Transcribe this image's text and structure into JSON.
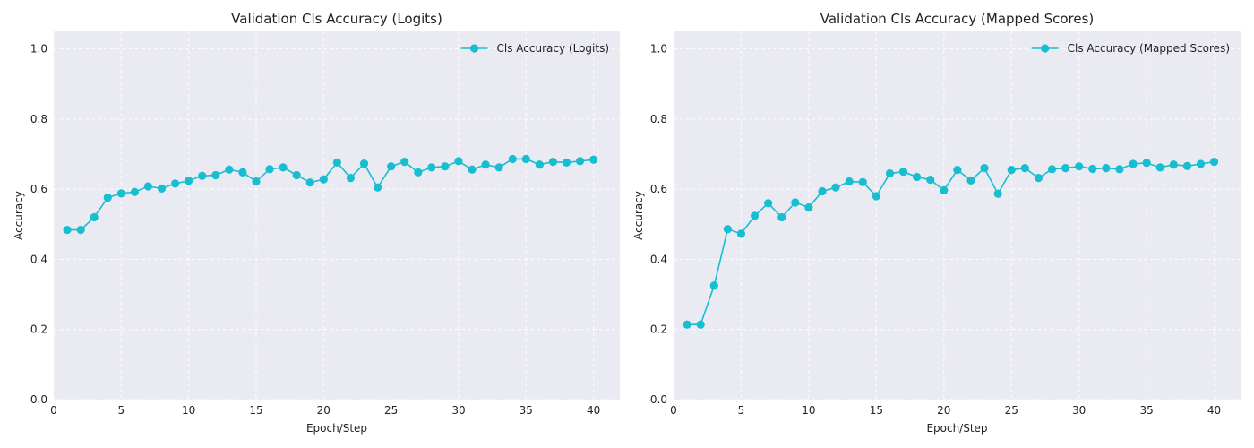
{
  "chart_data": [
    {
      "type": "line",
      "title": "Validation Cls Accuracy (Logits)",
      "xlabel": "Epoch/Step",
      "ylabel": "Accuracy",
      "xlim": [
        0,
        41.95
      ],
      "ylim": [
        0,
        1.05
      ],
      "xticks": [
        0,
        5,
        10,
        15,
        20,
        25,
        30,
        35,
        40
      ],
      "yticks": [
        0.0,
        0.2,
        0.4,
        0.6,
        0.8,
        1.0
      ],
      "xtick_labels": [
        "0",
        "5",
        "10",
        "15",
        "20",
        "25",
        "30",
        "35",
        "40"
      ],
      "ytick_labels": [
        "0.0",
        "0.2",
        "0.4",
        "0.6",
        "0.8",
        "1.0"
      ],
      "grid": true,
      "legend_position": "top-right",
      "color": "#17BECF",
      "series": [
        {
          "name": "Cls Accuracy (Logits)",
          "x": [
            1,
            2,
            3,
            4,
            5,
            6,
            7,
            8,
            9,
            10,
            11,
            12,
            13,
            14,
            15,
            16,
            17,
            18,
            19,
            20,
            21,
            22,
            23,
            24,
            25,
            26,
            27,
            28,
            29,
            30,
            31,
            32,
            33,
            34,
            35,
            36,
            37,
            38,
            39,
            40
          ],
          "y": [
            0.484,
            0.484,
            0.52,
            0.576,
            0.588,
            0.592,
            0.608,
            0.602,
            0.616,
            0.624,
            0.638,
            0.64,
            0.656,
            0.648,
            0.622,
            0.657,
            0.662,
            0.64,
            0.619,
            0.628,
            0.676,
            0.632,
            0.673,
            0.605,
            0.665,
            0.678,
            0.648,
            0.662,
            0.665,
            0.68,
            0.656,
            0.67,
            0.662,
            0.686,
            0.686,
            0.67,
            0.678,
            0.676,
            0.68,
            0.684
          ]
        }
      ]
    },
    {
      "type": "line",
      "title": "Validation Cls Accuracy (Mapped Scores)",
      "xlabel": "Epoch/Step",
      "ylabel": "Accuracy",
      "xlim": [
        0,
        41.95
      ],
      "ylim": [
        0,
        1.05
      ],
      "xticks": [
        0,
        5,
        10,
        15,
        20,
        25,
        30,
        35,
        40
      ],
      "yticks": [
        0.0,
        0.2,
        0.4,
        0.6,
        0.8,
        1.0
      ],
      "xtick_labels": [
        "0",
        "5",
        "10",
        "15",
        "20",
        "25",
        "30",
        "35",
        "40"
      ],
      "ytick_labels": [
        "0.0",
        "0.2",
        "0.4",
        "0.6",
        "0.8",
        "1.0"
      ],
      "grid": true,
      "legend_position": "top-right",
      "color": "#17BECF",
      "series": [
        {
          "name": "Cls Accuracy (Mapped Scores)",
          "x": [
            1,
            2,
            3,
            4,
            5,
            6,
            7,
            8,
            9,
            10,
            11,
            12,
            13,
            14,
            15,
            16,
            17,
            18,
            19,
            20,
            21,
            22,
            23,
            24,
            25,
            26,
            27,
            28,
            29,
            30,
            31,
            32,
            33,
            34,
            35,
            36,
            37,
            38,
            39,
            40
          ],
          "y": [
            0.214,
            0.214,
            0.325,
            0.486,
            0.473,
            0.524,
            0.56,
            0.52,
            0.562,
            0.548,
            0.594,
            0.605,
            0.622,
            0.62,
            0.58,
            0.645,
            0.65,
            0.635,
            0.627,
            0.597,
            0.655,
            0.625,
            0.66,
            0.587,
            0.655,
            0.66,
            0.632,
            0.657,
            0.66,
            0.665,
            0.658,
            0.66,
            0.657,
            0.672,
            0.675,
            0.662,
            0.67,
            0.666,
            0.672,
            0.678
          ]
        }
      ]
    }
  ]
}
